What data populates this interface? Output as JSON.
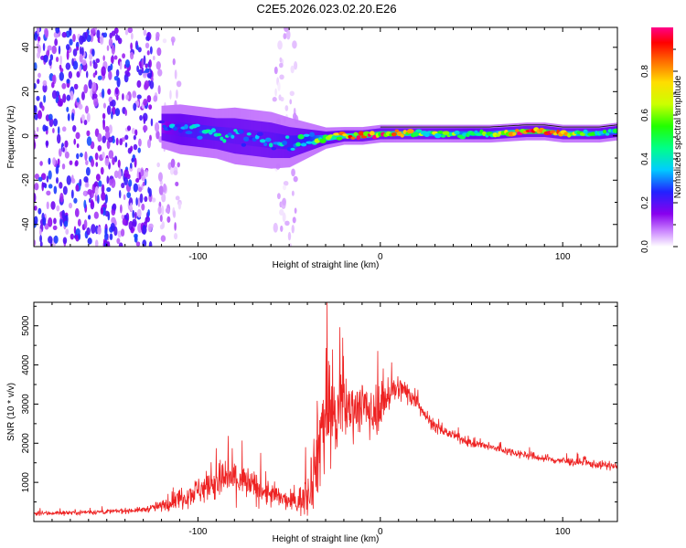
{
  "figure_title": "C2E5.2026.023.02.20.E26",
  "colors": {
    "snr_line": "#ee2222",
    "axis": "#000000",
    "background": "#ffffff"
  },
  "chart_data": [
    {
      "type": "heatmap",
      "name": "spectrogram",
      "xlabel": "Height of straight line (km)",
      "ylabel": "Frequency (Hz)",
      "xlim": [
        -190,
        130
      ],
      "ylim": [
        -50,
        49
      ],
      "xticks": [
        -100,
        0,
        100
      ],
      "xtick_labels": [
        "-100",
        "0",
        "100"
      ],
      "yticks": [
        -40,
        -20,
        0,
        20,
        40
      ],
      "ytick_labels": [
        "-40",
        "-20",
        "0",
        "20",
        "40"
      ],
      "colorbar": {
        "label": "Normalized spectral amplitude",
        "range": [
          0,
          1
        ],
        "ticks": [
          0.0,
          0.2,
          0.4,
          0.6,
          0.8
        ],
        "tick_labels": [
          "0.0",
          "0.2",
          "0.4",
          "0.6",
          "0.8"
        ]
      },
      "signal_band": [
        {
          "x": -120,
          "center": 4,
          "width": 6,
          "amp": 0.25
        },
        {
          "x": -110,
          "center": 3,
          "width": 7,
          "amp": 0.35
        },
        {
          "x": -100,
          "center": 2,
          "width": 7,
          "amp": 0.4
        },
        {
          "x": -90,
          "center": 1,
          "width": 7,
          "amp": 0.4
        },
        {
          "x": -80,
          "center": 0,
          "width": 8,
          "amp": 0.35
        },
        {
          "x": -70,
          "center": -1,
          "width": 8,
          "amp": 0.35
        },
        {
          "x": -60,
          "center": -2,
          "width": 8,
          "amp": 0.35
        },
        {
          "x": -50,
          "center": -3,
          "width": 7,
          "amp": 0.4
        },
        {
          "x": -40,
          "center": -2,
          "width": 5,
          "amp": 0.45
        },
        {
          "x": -30,
          "center": -1,
          "width": 3,
          "amp": 0.6
        },
        {
          "x": -20,
          "center": 0,
          "width": 2.5,
          "amp": 0.75
        },
        {
          "x": -10,
          "center": 0,
          "width": 2.5,
          "amp": 0.85
        },
        {
          "x": 0,
          "center": 1,
          "width": 2.5,
          "amp": 0.85
        },
        {
          "x": 10,
          "center": 1,
          "width": 2.5,
          "amp": 0.8
        },
        {
          "x": 20,
          "center": 1,
          "width": 2.5,
          "amp": 0.6
        },
        {
          "x": 40,
          "center": 1,
          "width": 2.5,
          "amp": 0.55
        },
        {
          "x": 60,
          "center": 1,
          "width": 2.5,
          "amp": 0.55
        },
        {
          "x": 80,
          "center": 2,
          "width": 2.5,
          "amp": 0.95
        },
        {
          "x": 90,
          "center": 2,
          "width": 2.5,
          "amp": 0.95
        },
        {
          "x": 100,
          "center": 1,
          "width": 2.5,
          "amp": 0.7
        },
        {
          "x": 110,
          "center": 1,
          "width": 2.5,
          "amp": 0.6
        },
        {
          "x": 120,
          "center": 1,
          "width": 2.5,
          "amp": 0.55
        },
        {
          "x": 130,
          "center": 2,
          "width": 2.5,
          "amp": 0.5
        }
      ],
      "noise_regions": [
        {
          "x0": -190,
          "x1": -125,
          "density": 1.0,
          "amp": 0.2
        },
        {
          "x0": -125,
          "x1": -110,
          "density": 0.5,
          "amp": 0.08
        },
        {
          "x0": -58,
          "x1": -46,
          "density": 0.5,
          "amp": 0.05
        }
      ]
    },
    {
      "type": "line",
      "name": "snr",
      "xlabel": "Height of straight line (km)",
      "ylabel": "SNR (10 * v/v)",
      "xlim": [
        -190,
        130
      ],
      "ylim": [
        0,
        5600
      ],
      "xticks": [
        -100,
        0,
        100
      ],
      "xtick_labels": [
        "-100",
        "0",
        "100"
      ],
      "yticks": [
        1000,
        2000,
        3000,
        4000,
        5000
      ],
      "ytick_labels": [
        "1000",
        "2000",
        "3000",
        "4000",
        "5000"
      ],
      "envelope": {
        "x": [
          -190,
          -170,
          -150,
          -130,
          -120,
          -110,
          -100,
          -90,
          -85,
          -80,
          -75,
          -70,
          -60,
          -50,
          -45,
          -40,
          -35,
          -32,
          -30,
          -27,
          -25,
          -20,
          -15,
          -10,
          -5,
          0,
          5,
          10,
          15,
          20,
          25,
          30,
          40,
          50,
          60,
          70,
          80,
          90,
          100,
          110,
          120,
          130
        ],
        "mean": [
          200,
          230,
          250,
          300,
          400,
          600,
          800,
          1000,
          1100,
          1100,
          1000,
          900,
          700,
          500,
          500,
          700,
          1600,
          2500,
          2800,
          3000,
          2600,
          2900,
          2900,
          3000,
          2700,
          3000,
          3300,
          3400,
          3300,
          3100,
          2700,
          2400,
          2200,
          2000,
          1900,
          1800,
          1700,
          1600,
          1550,
          1500,
          1450,
          1400
        ],
        "spread": [
          80,
          90,
          90,
          100,
          200,
          400,
          500,
          700,
          800,
          800,
          700,
          600,
          500,
          300,
          500,
          800,
          1600,
          2200,
          2400,
          2300,
          2000,
          1200,
          1000,
          1000,
          900,
          900,
          700,
          500,
          450,
          350,
          250,
          200,
          160,
          160,
          150,
          150,
          150,
          150,
          150,
          150,
          150,
          150
        ]
      }
    }
  ]
}
